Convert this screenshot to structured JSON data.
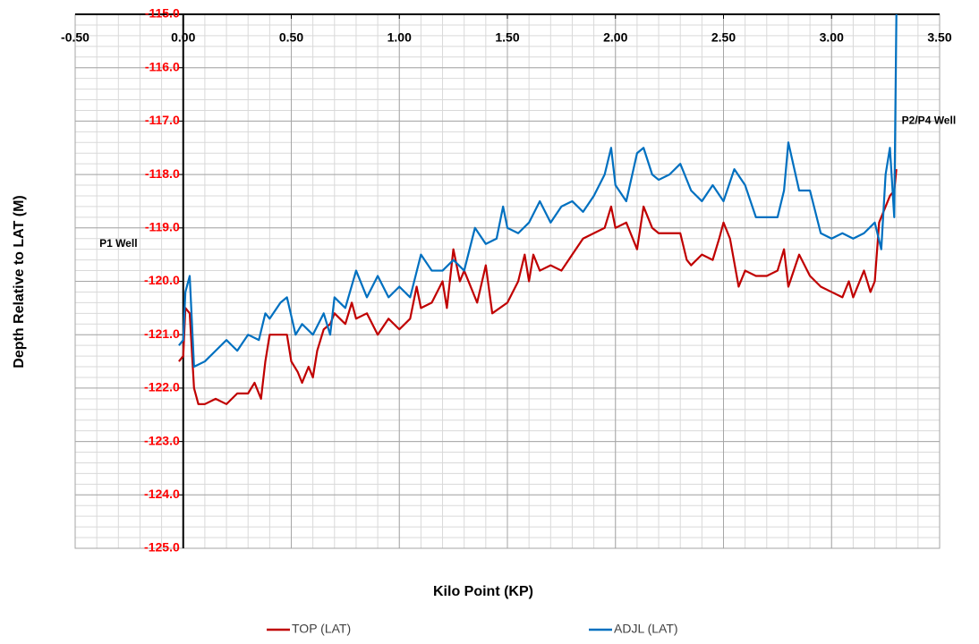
{
  "chart_data": {
    "type": "line",
    "xlabel": "Kilo Point (KP)",
    "ylabel": "Depth Relative to LAT (M)",
    "xlim": [
      -0.5,
      3.5
    ],
    "ylim": [
      -125,
      -115
    ],
    "xticks": [
      {
        "value": -0.5,
        "label": "-0.50"
      },
      {
        "value": 0,
        "label": "0.00"
      },
      {
        "value": 0.5,
        "label": "0.50"
      },
      {
        "value": 1,
        "label": "1.00"
      },
      {
        "value": 1.5,
        "label": "1.50"
      },
      {
        "value": 2,
        "label": "2.00"
      },
      {
        "value": 2.5,
        "label": "2.50"
      },
      {
        "value": 3,
        "label": "3.00"
      },
      {
        "value": 3.5,
        "label": "3.50"
      }
    ],
    "yticks": [
      {
        "value": -115,
        "label": "-115.0"
      },
      {
        "value": -116,
        "label": "-116.0"
      },
      {
        "value": -117,
        "label": "-117.0"
      },
      {
        "value": -118,
        "label": "-118.0"
      },
      {
        "value": -119,
        "label": "-119.0"
      },
      {
        "value": -120,
        "label": "-120.0"
      },
      {
        "value": -121,
        "label": "-121.0"
      },
      {
        "value": -122,
        "label": "-122.0"
      },
      {
        "value": -123,
        "label": "-123.0"
      },
      {
        "value": -124,
        "label": "-124.0"
      },
      {
        "value": -125,
        "label": "-125.0"
      }
    ],
    "grid": true,
    "minor_grid": {
      "x": 0.1,
      "y": 0.2
    },
    "legend": "bottom",
    "annotations": [
      {
        "text": "P1 Well",
        "x": -0.3,
        "y": -119.3
      },
      {
        "text": "P2/P4 Well",
        "x": 3.45,
        "y": -117
      }
    ],
    "series": [
      {
        "name": "TOP (LAT)",
        "color": "#c00000",
        "x": [
          -0.02,
          0,
          0.01,
          0.03,
          0.05,
          0.07,
          0.1,
          0.15,
          0.2,
          0.25,
          0.3,
          0.33,
          0.36,
          0.38,
          0.4,
          0.45,
          0.48,
          0.5,
          0.53,
          0.55,
          0.58,
          0.6,
          0.62,
          0.65,
          0.68,
          0.7,
          0.75,
          0.78,
          0.8,
          0.85,
          0.9,
          0.95,
          1,
          1.05,
          1.08,
          1.1,
          1.15,
          1.2,
          1.22,
          1.25,
          1.28,
          1.3,
          1.33,
          1.36,
          1.4,
          1.43,
          1.5,
          1.55,
          1.58,
          1.6,
          1.62,
          1.65,
          1.7,
          1.75,
          1.8,
          1.85,
          1.9,
          1.95,
          1.98,
          2,
          2.05,
          2.1,
          2.13,
          2.17,
          2.2,
          2.25,
          2.3,
          2.33,
          2.35,
          2.4,
          2.45,
          2.48,
          2.5,
          2.53,
          2.57,
          2.6,
          2.65,
          2.7,
          2.75,
          2.78,
          2.8,
          2.85,
          2.9,
          2.95,
          3,
          3.05,
          3.08,
          3.1,
          3.15,
          3.18,
          3.2,
          3.22,
          3.25,
          3.27,
          3.29,
          3.3
        ],
        "values": [
          -121.5,
          -121.4,
          -120.5,
          -120.6,
          -122,
          -122.3,
          -122.3,
          -122.2,
          -122.3,
          -122.1,
          -122.1,
          -121.9,
          -122.2,
          -121.5,
          -121,
          -121,
          -121,
          -121.5,
          -121.7,
          -121.9,
          -121.6,
          -121.8,
          -121.3,
          -120.9,
          -120.8,
          -120.6,
          -120.8,
          -120.4,
          -120.7,
          -120.6,
          -121,
          -120.7,
          -120.9,
          -120.7,
          -120.1,
          -120.5,
          -120.4,
          -120,
          -120.5,
          -119.4,
          -120,
          -119.8,
          -120.1,
          -120.4,
          -119.7,
          -120.6,
          -120.4,
          -120,
          -119.5,
          -120,
          -119.5,
          -119.8,
          -119.7,
          -119.8,
          -119.5,
          -119.2,
          -119.1,
          -119,
          -118.6,
          -119,
          -118.9,
          -119.4,
          -118.6,
          -119,
          -119.1,
          -119.1,
          -119.1,
          -119.6,
          -119.7,
          -119.5,
          -119.6,
          -119.2,
          -118.9,
          -119.2,
          -120.1,
          -119.8,
          -119.9,
          -119.9,
          -119.8,
          -119.4,
          -120.1,
          -119.5,
          -119.9,
          -120.1,
          -120.2,
          -120.3,
          -120,
          -120.3,
          -119.8,
          -120.2,
          -120,
          -118.9,
          -118.6,
          -118.4,
          -118.3,
          -117.9
        ]
      },
      {
        "name": "ADJL (LAT)",
        "color": "#0070c0",
        "x": [
          -0.02,
          0,
          0.01,
          0.03,
          0.05,
          0.1,
          0.15,
          0.2,
          0.25,
          0.3,
          0.35,
          0.38,
          0.4,
          0.45,
          0.48,
          0.52,
          0.55,
          0.6,
          0.65,
          0.68,
          0.7,
          0.75,
          0.8,
          0.85,
          0.9,
          0.95,
          1,
          1.05,
          1.1,
          1.15,
          1.2,
          1.25,
          1.3,
          1.35,
          1.4,
          1.45,
          1.48,
          1.5,
          1.55,
          1.6,
          1.65,
          1.7,
          1.75,
          1.8,
          1.85,
          1.9,
          1.95,
          1.98,
          2,
          2.05,
          2.1,
          2.13,
          2.17,
          2.2,
          2.25,
          2.3,
          2.35,
          2.4,
          2.45,
          2.5,
          2.55,
          2.6,
          2.65,
          2.7,
          2.75,
          2.78,
          2.8,
          2.85,
          2.9,
          2.95,
          3,
          3.05,
          3.1,
          3.15,
          3.2,
          3.23,
          3.25,
          3.27,
          3.29,
          3.3
        ],
        "values": [
          -121.2,
          -121.1,
          -120.2,
          -119.9,
          -121.6,
          -121.5,
          -121.3,
          -121.1,
          -121.3,
          -121,
          -121.1,
          -120.6,
          -120.7,
          -120.4,
          -120.3,
          -121,
          -120.8,
          -121,
          -120.6,
          -121,
          -120.3,
          -120.5,
          -119.8,
          -120.3,
          -119.9,
          -120.3,
          -120.1,
          -120.3,
          -119.5,
          -119.8,
          -119.8,
          -119.6,
          -119.8,
          -119,
          -119.3,
          -119.2,
          -118.6,
          -119,
          -119.1,
          -118.9,
          -118.5,
          -118.9,
          -118.6,
          -118.5,
          -118.7,
          -118.4,
          -118,
          -117.5,
          -118.2,
          -118.5,
          -117.6,
          -117.5,
          -118,
          -118.1,
          -118,
          -117.8,
          -118.3,
          -118.5,
          -118.2,
          -118.5,
          -117.9,
          -118.2,
          -118.8,
          -118.8,
          -118.8,
          -118.3,
          -117.4,
          -118.3,
          -118.3,
          -119.1,
          -119.2,
          -119.1,
          -119.2,
          -119.1,
          -118.9,
          -119.4,
          -118,
          -117.5,
          -118.8,
          -115
        ]
      }
    ]
  }
}
